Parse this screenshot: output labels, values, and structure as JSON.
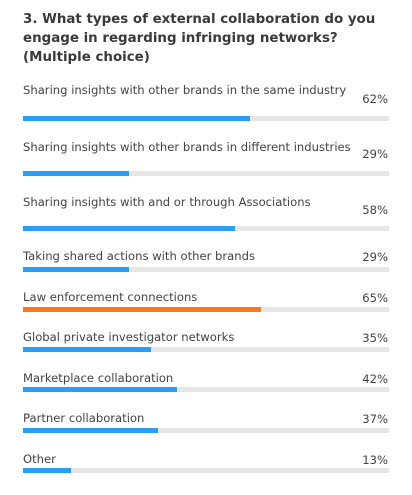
{
  "question": {
    "title": "3. What types of external collaboration do you engage in regarding infringing networks? (Multiple choice)"
  },
  "colors": {
    "bar_default": "#2a9df4",
    "bar_highlight": "#ff7a1a",
    "track": "#e6e6e6"
  },
  "chart_data": {
    "type": "bar",
    "orientation": "horizontal",
    "unit": "%",
    "xlim": [
      0,
      100
    ],
    "grid": false,
    "highlight_index": 4,
    "categories": [
      "Sharing insights with other brands in the same industry",
      "Sharing insights with other brands in different industries",
      "Sharing insights with and or through Associations",
      "Taking shared actions with other brands",
      "Law enforcement connections",
      "Global private investigator networks",
      "Marketplace collaboration",
      "Partner collaboration",
      "Other"
    ],
    "values": [
      62,
      29,
      58,
      29,
      65,
      35,
      42,
      37,
      13
    ],
    "value_labels": [
      "62%",
      "29%",
      "58%",
      "29%",
      "65%",
      "35%",
      "42%",
      "37%",
      "13%"
    ]
  }
}
